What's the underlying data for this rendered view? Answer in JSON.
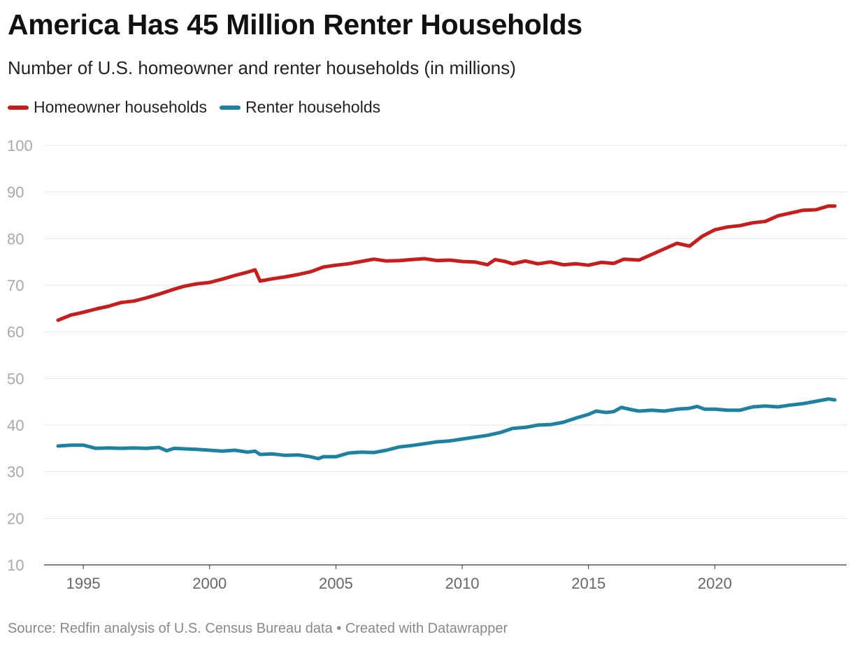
{
  "chart_data": {
    "type": "line",
    "title": "America Has 45 Million Renter Households",
    "subtitle": "Number of U.S. homeowner and renter households (in millions)",
    "source": "Source: Redfin analysis of U.S. Census Bureau data • Created with Datawrapper",
    "ylim": [
      10,
      100
    ],
    "yticks": [
      10,
      20,
      30,
      40,
      50,
      60,
      70,
      80,
      90,
      100
    ],
    "xlim": [
      1994,
      2024.75
    ],
    "xticks": [
      1995,
      2000,
      2005,
      2010,
      2015,
      2020
    ],
    "grid": "horizontal",
    "legend": "top-left",
    "series": [
      {
        "name": "Homeowner households",
        "color": "#c71e1d",
        "points": [
          [
            1994.0,
            62.5
          ],
          [
            1994.5,
            63.6
          ],
          [
            1995.0,
            64.2
          ],
          [
            1995.5,
            64.9
          ],
          [
            1996.0,
            65.5
          ],
          [
            1996.5,
            66.3
          ],
          [
            1997.0,
            66.6
          ],
          [
            1997.5,
            67.3
          ],
          [
            1998.0,
            68.1
          ],
          [
            1998.5,
            69.0
          ],
          [
            1999.0,
            69.8
          ],
          [
            1999.5,
            70.3
          ],
          [
            2000.0,
            70.6
          ],
          [
            2000.5,
            71.3
          ],
          [
            2001.0,
            72.1
          ],
          [
            2001.5,
            72.8
          ],
          [
            2001.8,
            73.3
          ],
          [
            2002.0,
            70.9
          ],
          [
            2002.5,
            71.4
          ],
          [
            2003.0,
            71.8
          ],
          [
            2003.5,
            72.3
          ],
          [
            2004.0,
            72.9
          ],
          [
            2004.5,
            73.9
          ],
          [
            2005.0,
            74.3
          ],
          [
            2005.5,
            74.6
          ],
          [
            2006.0,
            75.1
          ],
          [
            2006.5,
            75.6
          ],
          [
            2007.0,
            75.2
          ],
          [
            2007.5,
            75.3
          ],
          [
            2008.0,
            75.5
          ],
          [
            2008.5,
            75.7
          ],
          [
            2009.0,
            75.3
          ],
          [
            2009.5,
            75.4
          ],
          [
            2010.0,
            75.1
          ],
          [
            2010.5,
            75.0
          ],
          [
            2011.0,
            74.4
          ],
          [
            2011.3,
            75.5
          ],
          [
            2011.7,
            75.1
          ],
          [
            2012.0,
            74.6
          ],
          [
            2012.5,
            75.2
          ],
          [
            2013.0,
            74.6
          ],
          [
            2013.5,
            75.0
          ],
          [
            2014.0,
            74.4
          ],
          [
            2014.5,
            74.6
          ],
          [
            2015.0,
            74.3
          ],
          [
            2015.5,
            74.9
          ],
          [
            2016.0,
            74.7
          ],
          [
            2016.4,
            75.6
          ],
          [
            2017.0,
            75.4
          ],
          [
            2017.5,
            76.6
          ],
          [
            2018.0,
            77.8
          ],
          [
            2018.5,
            79.0
          ],
          [
            2019.0,
            78.4
          ],
          [
            2019.5,
            80.5
          ],
          [
            2020.0,
            81.9
          ],
          [
            2020.5,
            82.5
          ],
          [
            2021.0,
            82.8
          ],
          [
            2021.5,
            83.4
          ],
          [
            2022.0,
            83.7
          ],
          [
            2022.5,
            84.9
          ],
          [
            2023.0,
            85.5
          ],
          [
            2023.5,
            86.1
          ],
          [
            2024.0,
            86.2
          ],
          [
            2024.5,
            87.0
          ],
          [
            2024.75,
            87.0
          ]
        ]
      },
      {
        "name": "Renter households",
        "color": "#1d81a2",
        "points": [
          [
            1994.0,
            35.5
          ],
          [
            1994.5,
            35.7
          ],
          [
            1995.0,
            35.7
          ],
          [
            1995.5,
            35.0
          ],
          [
            1996.0,
            35.1
          ],
          [
            1996.5,
            35.0
          ],
          [
            1997.0,
            35.1
          ],
          [
            1997.5,
            35.0
          ],
          [
            1998.0,
            35.2
          ],
          [
            1998.3,
            34.5
          ],
          [
            1998.6,
            35.0
          ],
          [
            1999.0,
            34.9
          ],
          [
            1999.5,
            34.8
          ],
          [
            2000.0,
            34.6
          ],
          [
            2000.5,
            34.4
          ],
          [
            2001.0,
            34.6
          ],
          [
            2001.5,
            34.2
          ],
          [
            2001.8,
            34.4
          ],
          [
            2002.0,
            33.7
          ],
          [
            2002.5,
            33.8
          ],
          [
            2003.0,
            33.5
          ],
          [
            2003.5,
            33.6
          ],
          [
            2004.0,
            33.2
          ],
          [
            2004.3,
            32.8
          ],
          [
            2004.5,
            33.2
          ],
          [
            2005.0,
            33.2
          ],
          [
            2005.5,
            34.0
          ],
          [
            2006.0,
            34.2
          ],
          [
            2006.5,
            34.1
          ],
          [
            2007.0,
            34.6
          ],
          [
            2007.5,
            35.3
          ],
          [
            2008.0,
            35.6
          ],
          [
            2008.5,
            36.0
          ],
          [
            2009.0,
            36.4
          ],
          [
            2009.5,
            36.6
          ],
          [
            2010.0,
            37.0
          ],
          [
            2010.5,
            37.4
          ],
          [
            2011.0,
            37.8
          ],
          [
            2011.5,
            38.4
          ],
          [
            2012.0,
            39.3
          ],
          [
            2012.5,
            39.5
          ],
          [
            2013.0,
            40.0
          ],
          [
            2013.5,
            40.1
          ],
          [
            2014.0,
            40.6
          ],
          [
            2014.5,
            41.5
          ],
          [
            2015.0,
            42.3
          ],
          [
            2015.3,
            43.0
          ],
          [
            2015.7,
            42.7
          ],
          [
            2016.0,
            42.9
          ],
          [
            2016.3,
            43.8
          ],
          [
            2016.7,
            43.3
          ],
          [
            2017.0,
            43.0
          ],
          [
            2017.5,
            43.2
          ],
          [
            2018.0,
            43.0
          ],
          [
            2018.5,
            43.4
          ],
          [
            2019.0,
            43.6
          ],
          [
            2019.3,
            44.0
          ],
          [
            2019.6,
            43.4
          ],
          [
            2020.0,
            43.4
          ],
          [
            2020.5,
            43.2
          ],
          [
            2021.0,
            43.2
          ],
          [
            2021.5,
            43.9
          ],
          [
            2022.0,
            44.1
          ],
          [
            2022.5,
            43.9
          ],
          [
            2023.0,
            44.3
          ],
          [
            2023.5,
            44.6
          ],
          [
            2024.0,
            45.1
          ],
          [
            2024.5,
            45.6
          ],
          [
            2024.75,
            45.4
          ]
        ]
      }
    ]
  }
}
